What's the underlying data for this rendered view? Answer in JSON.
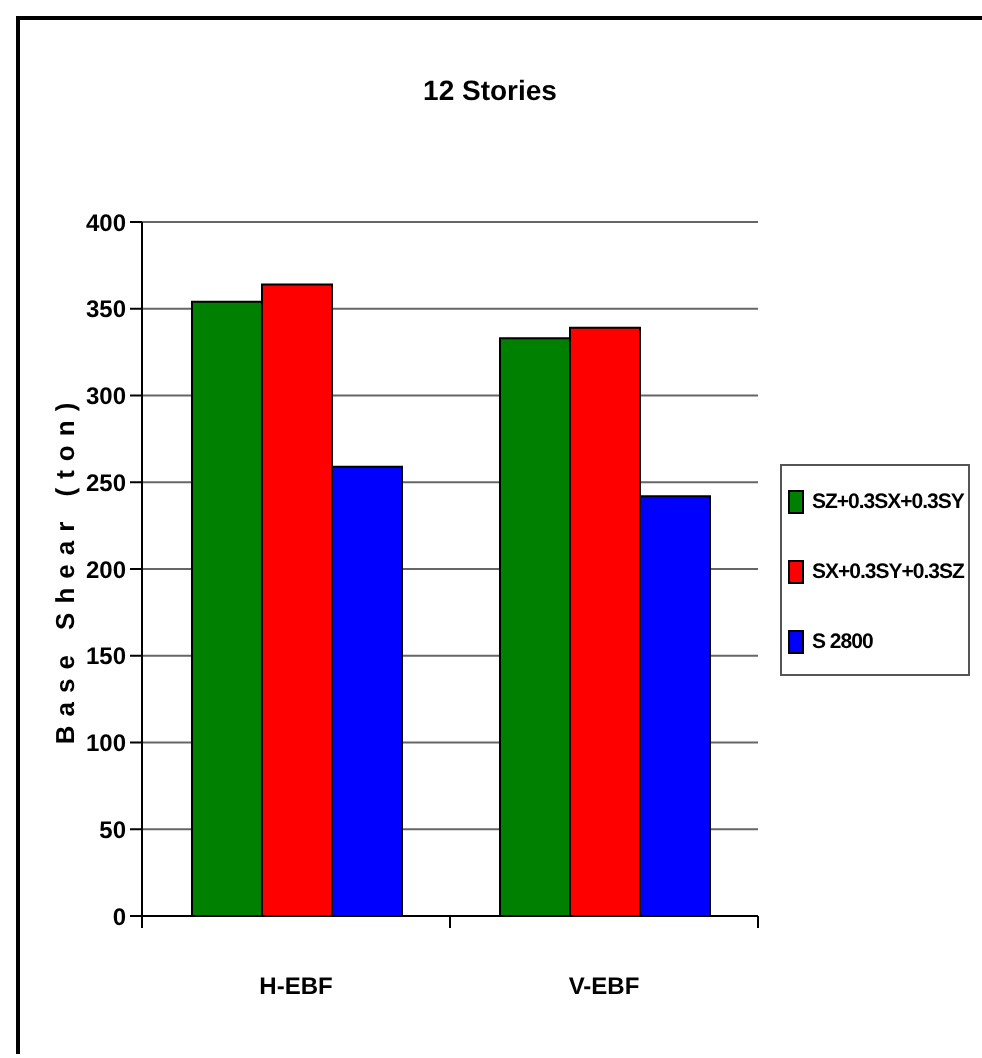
{
  "chart_data": {
    "type": "bar",
    "title": "12 Stories",
    "ylabel": "Base Shear (ton)",
    "categories": [
      "H-EBF",
      "V-EBF"
    ],
    "series": [
      {
        "name": "SZ+0.3SX+0.3SY",
        "color": "#008000",
        "values": [
          354,
          333
        ]
      },
      {
        "name": "SX+0.3SY+0.3SZ",
        "color": "#ff0000",
        "values": [
          364,
          339
        ]
      },
      {
        "name": "S 2800",
        "color": "#0000ff",
        "values": [
          259,
          242
        ]
      }
    ],
    "ylim": [
      0,
      400
    ],
    "yticks": [
      0,
      50,
      100,
      150,
      200,
      250,
      300,
      350,
      400
    ],
    "grid": "y",
    "legend": "right"
  }
}
